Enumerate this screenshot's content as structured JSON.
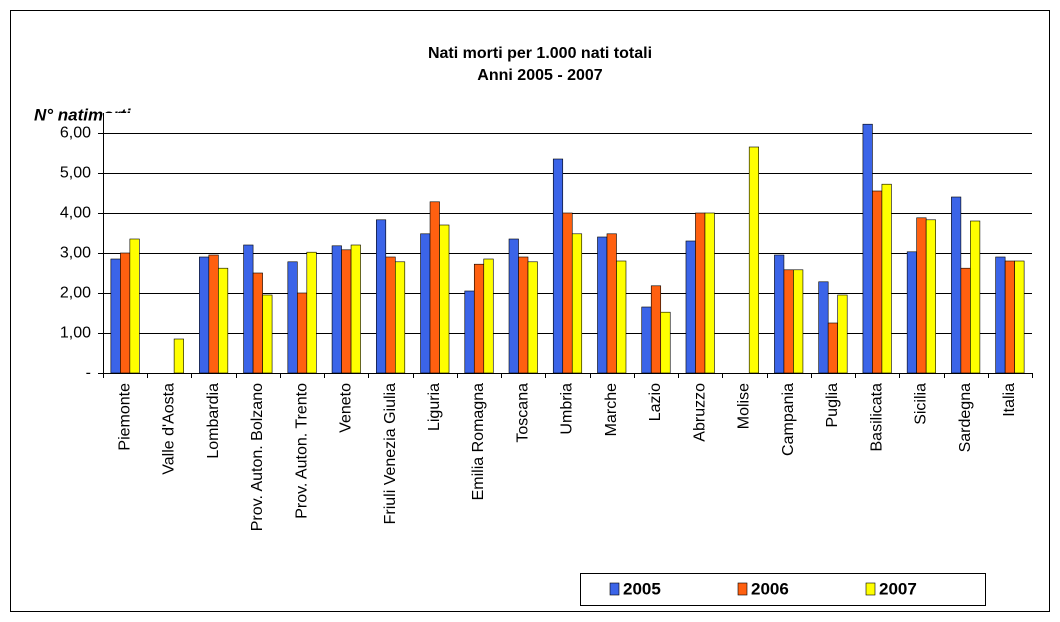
{
  "chart_data": {
    "type": "bar",
    "title": "Nati morti per 1.000 nati totali",
    "subtitle": "Anni 2005 - 2007",
    "y_label": "N° natimorti",
    "categories": [
      "Piemonte",
      "Valle d'Aosta",
      "Lombardia",
      "Prov. Auton. Bolzano",
      "Prov. Auton. Trento",
      "Veneto",
      "Friuli Venezia Giulia",
      "Liguria",
      "Emilia Romagna",
      "Toscana",
      "Umbria",
      "Marche",
      "Lazio",
      "Abruzzo",
      "Molise",
      "Campania",
      "Puglia",
      "Basilicata",
      "Sicilia",
      "Sardegna",
      "Italia"
    ],
    "series": [
      {
        "name": "2005",
        "color": "#3b64e8",
        "values": [
          2.85,
          0,
          2.9,
          3.2,
          2.78,
          3.18,
          3.83,
          3.48,
          2.05,
          3.35,
          5.35,
          3.4,
          1.65,
          3.3,
          0,
          2.95,
          2.28,
          6.22,
          3.03,
          4.4,
          2.9
        ]
      },
      {
        "name": "2006",
        "color": "#ff6010",
        "values": [
          3.0,
          0,
          2.95,
          2.5,
          2.0,
          3.08,
          2.9,
          4.28,
          2.72,
          2.9,
          4.0,
          3.48,
          2.18,
          4.0,
          0,
          2.58,
          1.25,
          4.55,
          3.88,
          2.62,
          2.8
        ]
      },
      {
        "name": "2007",
        "color": "#ffff00",
        "values": [
          3.35,
          0.85,
          2.62,
          1.95,
          3.02,
          3.2,
          2.78,
          3.7,
          2.85,
          2.78,
          3.48,
          2.8,
          1.52,
          4.0,
          5.65,
          2.58,
          1.95,
          4.72,
          3.83,
          3.8,
          2.8
        ]
      }
    ],
    "ylim": [
      0,
      6.5
    ],
    "yticks": [
      {
        "value": 0,
        "label": "-"
      },
      {
        "value": 1,
        "label": "1,00"
      },
      {
        "value": 2,
        "label": "2,00"
      },
      {
        "value": 3,
        "label": "3,00"
      },
      {
        "value": 4,
        "label": "4,00"
      },
      {
        "value": 5,
        "label": "5,00"
      },
      {
        "value": 6,
        "label": "6,00"
      }
    ],
    "grid": true
  }
}
